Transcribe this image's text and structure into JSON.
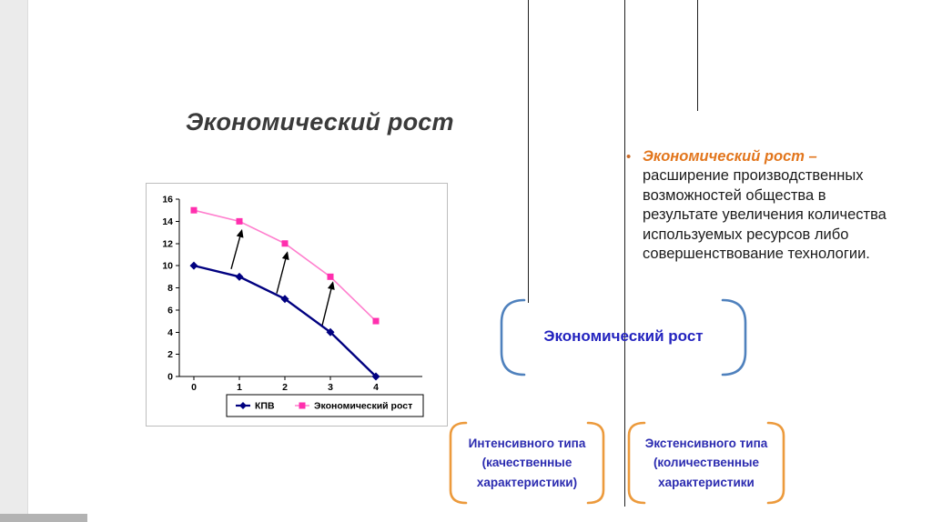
{
  "slide": {
    "title": "Экономический рост",
    "bullet": {
      "glyph": "•",
      "term": "Экономический рост –",
      "definition": "расширение производственных возможностей общества в результате увеличения количества используемых ресурсов либо совершенствование технологии."
    },
    "center_label": "Экономический рост",
    "boxes": [
      {
        "lines": [
          "Интенсивного типа",
          "(качественные",
          "характеристики)"
        ]
      },
      {
        "lines": [
          "Экстенсивного типа",
          "(количественные",
          "характеристики"
        ]
      }
    ],
    "colors": {
      "accent_orange_text": "#e2761d",
      "accent_blue_text": "#2424bf",
      "bracket_blue": "#4f81bd",
      "bracket_orange": "#ec9a3c",
      "series_kpv": "#000080",
      "series_growth_line": "#ff7fce",
      "series_growth_marker": "#ff2fae"
    }
  },
  "chart_data": {
    "type": "line",
    "title": "",
    "xlabel": "",
    "ylabel": "",
    "x": [
      0,
      1,
      2,
      3,
      4
    ],
    "ylim": [
      0,
      16
    ],
    "ytick_step": 2,
    "grid": false,
    "legend_position": "bottom",
    "series": [
      {
        "name": "КПВ",
        "values": [
          10,
          9,
          7,
          4,
          0
        ],
        "color": "#000080",
        "marker": "diamond"
      },
      {
        "name": "Экономический рост",
        "values": [
          15,
          14,
          12,
          9,
          5
        ],
        "color": "#ff7fce",
        "marker": "square",
        "marker_color": "#ff2fae"
      }
    ],
    "arrows": [
      {
        "x1": 0.82,
        "y1": 9.7,
        "x2": 1.06,
        "y2": 13.3
      },
      {
        "x1": 1.82,
        "y1": 7.5,
        "x2": 2.06,
        "y2": 11.3
      },
      {
        "x1": 2.82,
        "y1": 4.6,
        "x2": 3.06,
        "y2": 8.6
      }
    ]
  }
}
